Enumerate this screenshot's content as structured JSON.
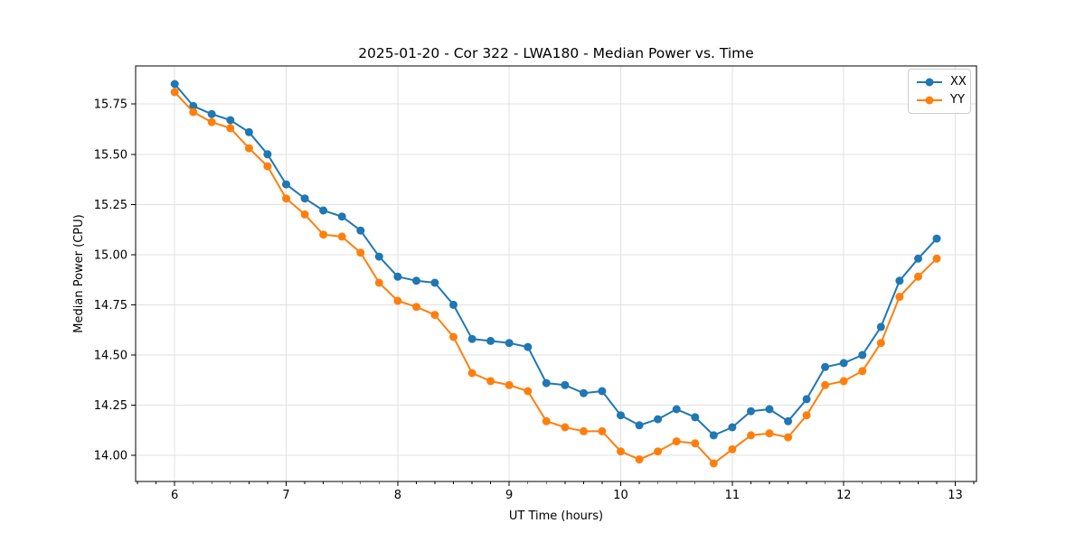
{
  "chart_data": {
    "type": "line",
    "title": "2025-01-20 - Cor 322 - LWA180 - Median Power vs. Time",
    "xlabel": "UT Time (hours)",
    "ylabel": "Median Power (CPU)",
    "xlim": [
      5.65,
      13.19
    ],
    "ylim": [
      13.87,
      15.94
    ],
    "x_ticks": [
      6,
      7,
      8,
      9,
      10,
      11,
      12,
      13
    ],
    "y_ticks": [
      14.0,
      14.25,
      14.5,
      14.75,
      15.0,
      15.25,
      15.5,
      15.75
    ],
    "x_minor_step": 0.166667,
    "grid": true,
    "grid_color": "#e0e0e0",
    "legend_position": "upper right",
    "marker": "circle",
    "x": [
      6.0,
      6.167,
      6.333,
      6.5,
      6.667,
      6.833,
      7.0,
      7.167,
      7.333,
      7.5,
      7.667,
      7.833,
      8.0,
      8.167,
      8.333,
      8.5,
      8.667,
      8.833,
      9.0,
      9.167,
      9.333,
      9.5,
      9.667,
      9.833,
      10.0,
      10.167,
      10.333,
      10.5,
      10.667,
      10.833,
      11.0,
      11.167,
      11.333,
      11.5,
      11.667,
      11.833,
      12.0,
      12.167,
      12.333,
      12.5,
      12.667,
      12.833
    ],
    "series": [
      {
        "name": "XX",
        "color": "#1f77b4",
        "values": [
          15.85,
          15.74,
          15.7,
          15.67,
          15.61,
          15.5,
          15.35,
          15.28,
          15.22,
          15.19,
          15.12,
          14.99,
          14.89,
          14.87,
          14.86,
          14.75,
          14.58,
          14.57,
          14.56,
          14.54,
          14.36,
          14.35,
          14.31,
          14.32,
          14.2,
          14.15,
          14.18,
          14.23,
          14.19,
          14.1,
          14.14,
          14.22,
          14.23,
          14.17,
          14.28,
          14.44,
          14.46,
          14.5,
          14.64,
          14.87,
          14.98,
          15.08
        ]
      },
      {
        "name": "YY",
        "color": "#ff7f0e",
        "values": [
          15.81,
          15.71,
          15.66,
          15.63,
          15.53,
          15.44,
          15.28,
          15.2,
          15.1,
          15.09,
          15.01,
          14.86,
          14.77,
          14.74,
          14.7,
          14.59,
          14.41,
          14.37,
          14.35,
          14.32,
          14.17,
          14.14,
          14.12,
          14.12,
          14.02,
          13.98,
          14.02,
          14.07,
          14.06,
          13.96,
          14.03,
          14.1,
          14.11,
          14.09,
          14.2,
          14.35,
          14.37,
          14.42,
          14.56,
          14.79,
          14.89,
          14.98
        ]
      }
    ]
  }
}
